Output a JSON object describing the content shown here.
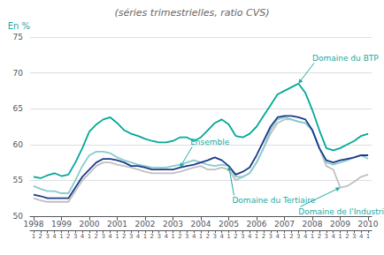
{
  "chart_data": {
    "type": "line",
    "title": "(séries trimestrielles, ratio CVS)",
    "ylabel": "En %",
    "ylim": [
      50,
      75
    ],
    "yticks": [
      50,
      55,
      60,
      65,
      70,
      75
    ],
    "grid": true,
    "categories": [
      "1998",
      null,
      null,
      null,
      "1999",
      null,
      null,
      null,
      "2000",
      null,
      null,
      null,
      "2001",
      null,
      null,
      null,
      "2002",
      null,
      null,
      null,
      "2003",
      null,
      null,
      null,
      "2004",
      null,
      null,
      null,
      "2005",
      null,
      null,
      null,
      "2006",
      null,
      null,
      null,
      "2007",
      null,
      null,
      null,
      "2008",
      null,
      null,
      null,
      "2009",
      null,
      null,
      null,
      "2010"
    ],
    "quarter_labels": [
      "1",
      "2",
      "3",
      "4",
      "1",
      "2",
      "3",
      "4",
      "1",
      "2",
      "3",
      "4",
      "1",
      "2",
      "3",
      "4",
      "1",
      "2",
      "3",
      "4",
      "1",
      "2",
      "3",
      "4",
      "1",
      "2",
      "3",
      "4",
      "1",
      "2",
      "3",
      "4",
      "1",
      "2",
      "3",
      "4",
      "1",
      "2",
      "3",
      "4",
      "1",
      "2",
      "3",
      "4",
      "1",
      "2",
      "3",
      "4",
      "1"
    ],
    "series": [
      {
        "name": "BTP",
        "color": "#00a898",
        "values": [
          55.5,
          55.3,
          55.7,
          56.0,
          55.6,
          55.8,
          57.5,
          59.5,
          61.8,
          62.8,
          63.5,
          63.8,
          63.0,
          62.0,
          61.5,
          61.2,
          60.8,
          60.5,
          60.3,
          60.3,
          60.5,
          61.0,
          61.0,
          60.5,
          61.0,
          62.0,
          63.0,
          63.5,
          62.8,
          61.2,
          61.0,
          61.5,
          62.5,
          64.0,
          65.5,
          67.0,
          67.5,
          68.0,
          68.5,
          67.2,
          64.8,
          62.0,
          59.5,
          59.2,
          59.5,
          60.0,
          60.5,
          61.2,
          61.5
        ]
      },
      {
        "name": "Industrie",
        "color": "#c0c0c0",
        "values": [
          52.5,
          52.2,
          52.0,
          52.0,
          52.0,
          52.0,
          53.5,
          55.0,
          56.0,
          57.0,
          57.5,
          57.5,
          57.2,
          57.0,
          56.8,
          56.5,
          56.2,
          56.0,
          56.0,
          56.0,
          56.0,
          56.2,
          56.5,
          56.8,
          57.0,
          56.5,
          56.5,
          56.8,
          56.5,
          55.0,
          55.5,
          56.0,
          57.5,
          59.5,
          61.5,
          63.0,
          63.5,
          63.5,
          63.2,
          63.0,
          62.0,
          59.5,
          57.0,
          56.5,
          54.0,
          54.2,
          54.8,
          55.5,
          55.8
        ]
      },
      {
        "name": "Tertiaire",
        "color": "#88cccc",
        "values": [
          54.2,
          53.8,
          53.5,
          53.5,
          53.2,
          53.2,
          55.0,
          57.0,
          58.5,
          59.0,
          59.0,
          58.8,
          58.2,
          57.8,
          57.5,
          57.2,
          57.0,
          56.8,
          56.8,
          56.8,
          57.0,
          57.2,
          57.5,
          57.8,
          57.5,
          57.2,
          57.0,
          57.2,
          57.0,
          55.5,
          55.5,
          56.0,
          57.5,
          59.5,
          62.0,
          63.5,
          63.8,
          63.5,
          63.2,
          63.0,
          62.0,
          59.5,
          57.5,
          57.2,
          57.5,
          57.8,
          58.2,
          58.5,
          58.0
        ]
      },
      {
        "name": "Ensemble",
        "color": "#1a3a8a",
        "values": [
          53.0,
          52.8,
          52.5,
          52.5,
          52.5,
          52.5,
          54.0,
          55.5,
          56.5,
          57.5,
          58.0,
          58.0,
          57.8,
          57.5,
          57.0,
          57.0,
          56.8,
          56.5,
          56.5,
          56.5,
          56.5,
          56.8,
          57.0,
          57.2,
          57.5,
          57.8,
          58.2,
          57.8,
          57.0,
          55.8,
          56.2,
          56.8,
          58.5,
          60.5,
          62.5,
          63.8,
          64.0,
          64.0,
          63.8,
          63.5,
          62.0,
          59.5,
          57.8,
          57.5,
          57.8,
          58.0,
          58.2,
          58.5,
          58.5
        ]
      }
    ],
    "annotations": [
      {
        "text": "Domaine du BTP",
        "series": "BTP",
        "index": 38,
        "text_x": 40,
        "text_y": 71.5,
        "color": "#20a8a0"
      },
      {
        "text": "Ensemble",
        "series": "Ensemble",
        "index": 21,
        "text_x": 22.5,
        "text_y": 59.8,
        "color": "#20a8a0"
      },
      {
        "text": "Domaine du Tertiaire",
        "series": "Tertiaire",
        "index": 28,
        "text_x": 28.5,
        "text_y": 52.8,
        "color": "#20a8a0"
      },
      {
        "text": "Domaine de l'Industrie",
        "series": "Industrie",
        "index": 44,
        "text_x": 38,
        "text_y": 51.2,
        "color": "#20a8a0"
      }
    ]
  }
}
